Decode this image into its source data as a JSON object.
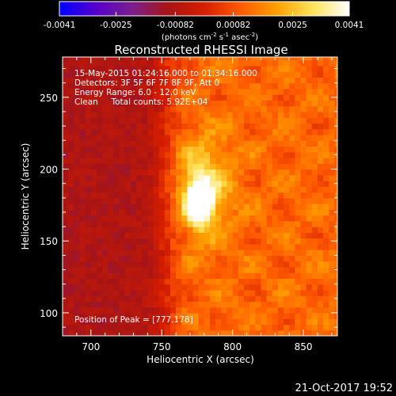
{
  "chart_data": {
    "type": "heatmap",
    "title": "Reconstructed RHESSI Image",
    "xlabel": "Heliocentric X (arcsec)",
    "ylabel": "Heliocentric Y (arcsec)",
    "xlim": [
      680,
      874
    ],
    "ylim": [
      84,
      278
    ],
    "x_ticks": [
      700,
      750,
      800,
      850
    ],
    "y_ticks": [
      100,
      150,
      200,
      250
    ],
    "colorbar": {
      "min": -0.0041,
      "max": 0.0041,
      "ticks": [
        "-0.0041",
        "-0.0025",
        "-0.00082",
        "0.00082",
        "0.0025",
        "0.0041"
      ],
      "unit_prefix": "(photons cm",
      "unit_exp1": "-2",
      "unit_mid": " s",
      "unit_exp2": "-1",
      "unit_mid2": " asec",
      "unit_exp3": "-2",
      "unit_suffix": ")",
      "colors": [
        "#0000ff",
        "#5500cc",
        "#7a1f8f",
        "#a81414",
        "#d61e00",
        "#ff5a00",
        "#ffa000",
        "#ffe45a",
        "#ffffff"
      ]
    },
    "info_lines": [
      "15-May-2015 01:24:16.000 to 01:34:16.000",
      "Detectors: 3F 5F 6F 7F 8F 9F, Att 0",
      "Energy Range: 6.0 - 12.0 keV",
      "Clean     Total counts: 5.92E+04"
    ],
    "peak_label": "Position of Peak = [777,178]",
    "peak": [
      777,
      178
    ],
    "peak_value": 0.0041,
    "sources": [
      {
        "x": 777,
        "y": 178,
        "sigma_x": 6,
        "sigma_y": 10,
        "amp": 1.0
      },
      {
        "x": 778,
        "y": 187,
        "sigma_x": 14,
        "sigma_y": 25,
        "amp": 0.45
      }
    ],
    "background": {
      "purple_x_max": 720,
      "purple_level": -0.22,
      "red_level": 0.3,
      "transition_x": 754
    }
  },
  "footer": {
    "date": "21-Oct-2017 19:52"
  }
}
